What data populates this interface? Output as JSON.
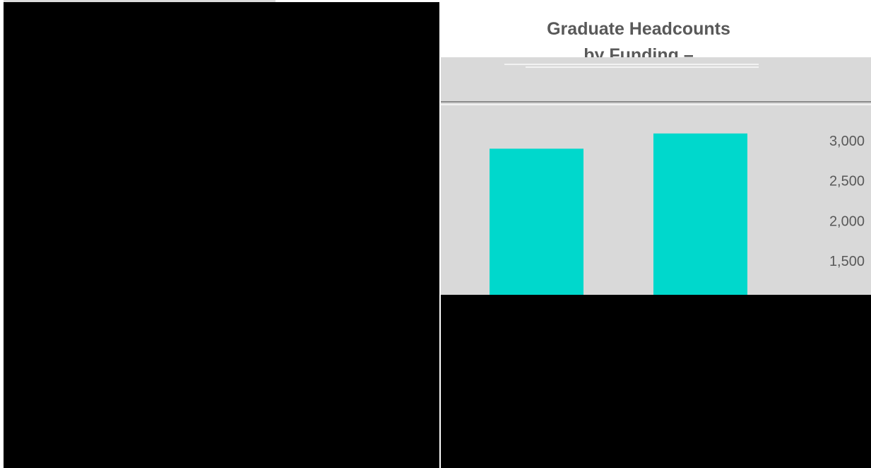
{
  "chart_data": {
    "type": "bar",
    "title": "Graduate Headcounts",
    "subtitle": "by Funding –",
    "xlabel": "",
    "ylabel": "",
    "categories": [
      "",
      ""
    ],
    "values": [
      2900,
      3090
    ],
    "ylim": [
      1100,
      3350
    ],
    "y_ticks": [
      1500,
      2000,
      2500,
      3000
    ],
    "y_tick_labels": [
      "1,500",
      "2,000",
      "2,500",
      "3,000"
    ],
    "y_axis_side": "right",
    "grid": false,
    "bar_color": "#00d8cc",
    "background_color": "#d9d9d9"
  }
}
